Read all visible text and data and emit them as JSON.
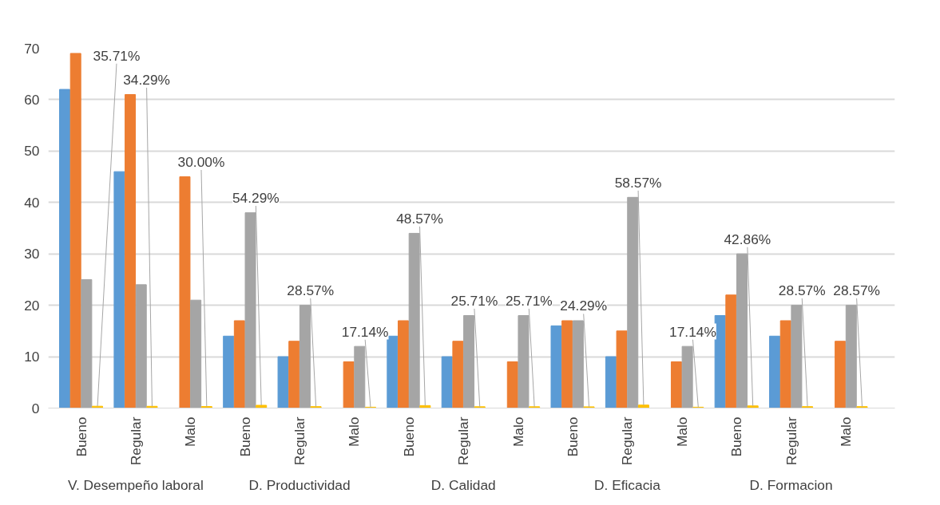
{
  "chart_data": {
    "type": "bar",
    "categories": [
      "Bueno",
      "Regular",
      "Malo",
      "Bueno",
      "Regular",
      "Malo",
      "Bueno",
      "Regular",
      "Malo",
      "Bueno",
      "Regular",
      "Malo",
      "Bueno",
      "Regular",
      "Malo"
    ],
    "series": [
      {
        "color": "#5b9bd5",
        "values": [
          62,
          46,
          0,
          14,
          10,
          0,
          14,
          10,
          0,
          16,
          10,
          0,
          18,
          14,
          0
        ]
      },
      {
        "color": "#ed7d31",
        "values": [
          69,
          61,
          45,
          17,
          13,
          9,
          17,
          13,
          9,
          17,
          15,
          9,
          22,
          17,
          13
        ]
      },
      {
        "color": "#a5a5a5",
        "values": [
          25,
          24,
          21,
          38,
          20,
          12,
          34,
          18,
          18,
          17,
          41,
          12,
          30,
          20,
          20
        ]
      },
      {
        "color": "#ffc000",
        "values": [
          0.3571,
          0.3429,
          0.3,
          0.5429,
          0.2857,
          0.1714,
          0.4857,
          0.2571,
          0.2571,
          0.2429,
          0.5857,
          0.1714,
          0.4286,
          0.2857,
          0.2857
        ],
        "value_labels": [
          "35.71%",
          "34.29%",
          "30.00%",
          "54.29%",
          "28.57%",
          "17.14%",
          "48.57%",
          "25.71%",
          "25.71%",
          "24.29%",
          "58.57%",
          "17.14%",
          "42.86%",
          "28.57%",
          "28.57%"
        ]
      }
    ],
    "annotations": [
      "V. Desempeño laboral",
      "D. Productividad",
      "D. Calidad",
      "D. Eficacia",
      "D. Formacion"
    ],
    "ylim": [
      0,
      70
    ],
    "yticks": [
      0,
      10,
      20,
      30,
      40,
      50,
      60,
      70
    ],
    "grid": "y"
  }
}
